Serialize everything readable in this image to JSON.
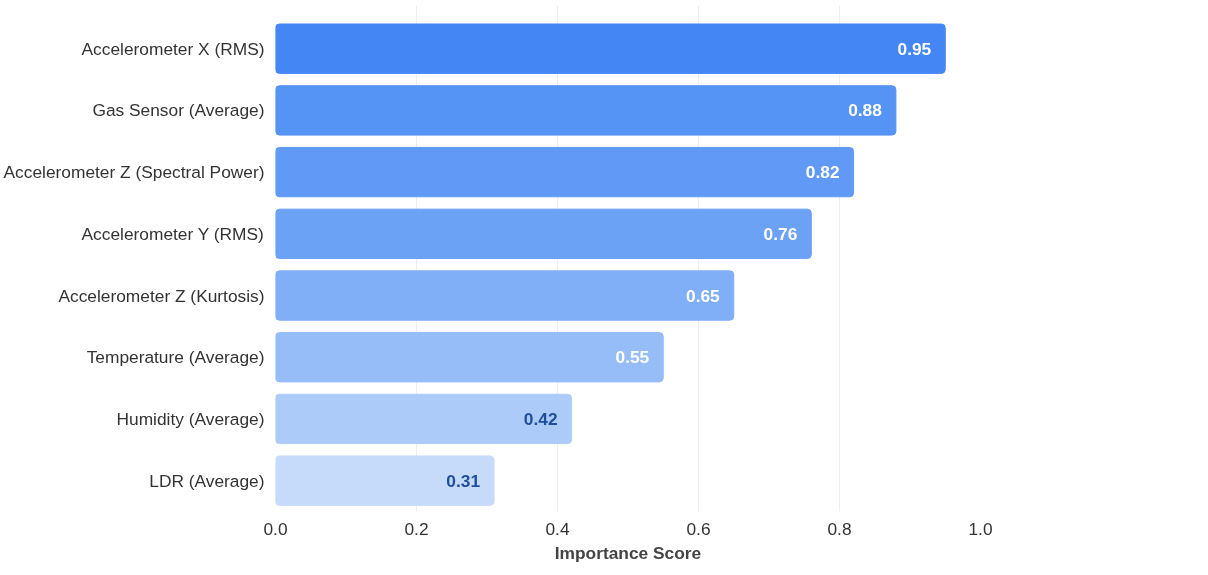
{
  "chart_data": {
    "type": "bar",
    "orientation": "horizontal",
    "xlabel": "Importance Score",
    "categories": [
      "Accelerometer X (RMS)",
      "Gas Sensor (Average)",
      "Accelerometer Z (Spectral Power)",
      "Accelerometer Y (RMS)",
      "Accelerometer Z (Kurtosis)",
      "Temperature (Average)",
      "Humidity (Average)",
      "LDR (Average)"
    ],
    "values": [
      0.95,
      0.88,
      0.82,
      0.76,
      0.65,
      0.55,
      0.42,
      0.31
    ],
    "colors": [
      "#4487f4",
      "#5593f5",
      "#609af6",
      "#6ca2f6",
      "#80aff7",
      "#96bdf8",
      "#adcbf8",
      "#c6dbf9"
    ],
    "xlim": [
      0,
      1.0
    ],
    "xticks": [
      {
        "value": 0,
        "label": "0.0"
      },
      {
        "value": 0.2,
        "label": "0.2"
      },
      {
        "value": 0.4,
        "label": "0.4"
      },
      {
        "value": 0.6,
        "label": "0.6"
      },
      {
        "value": 0.8,
        "label": "0.8"
      },
      {
        "value": 1.0,
        "label": "1.0"
      }
    ],
    "data_labels": true,
    "grid": "x"
  }
}
